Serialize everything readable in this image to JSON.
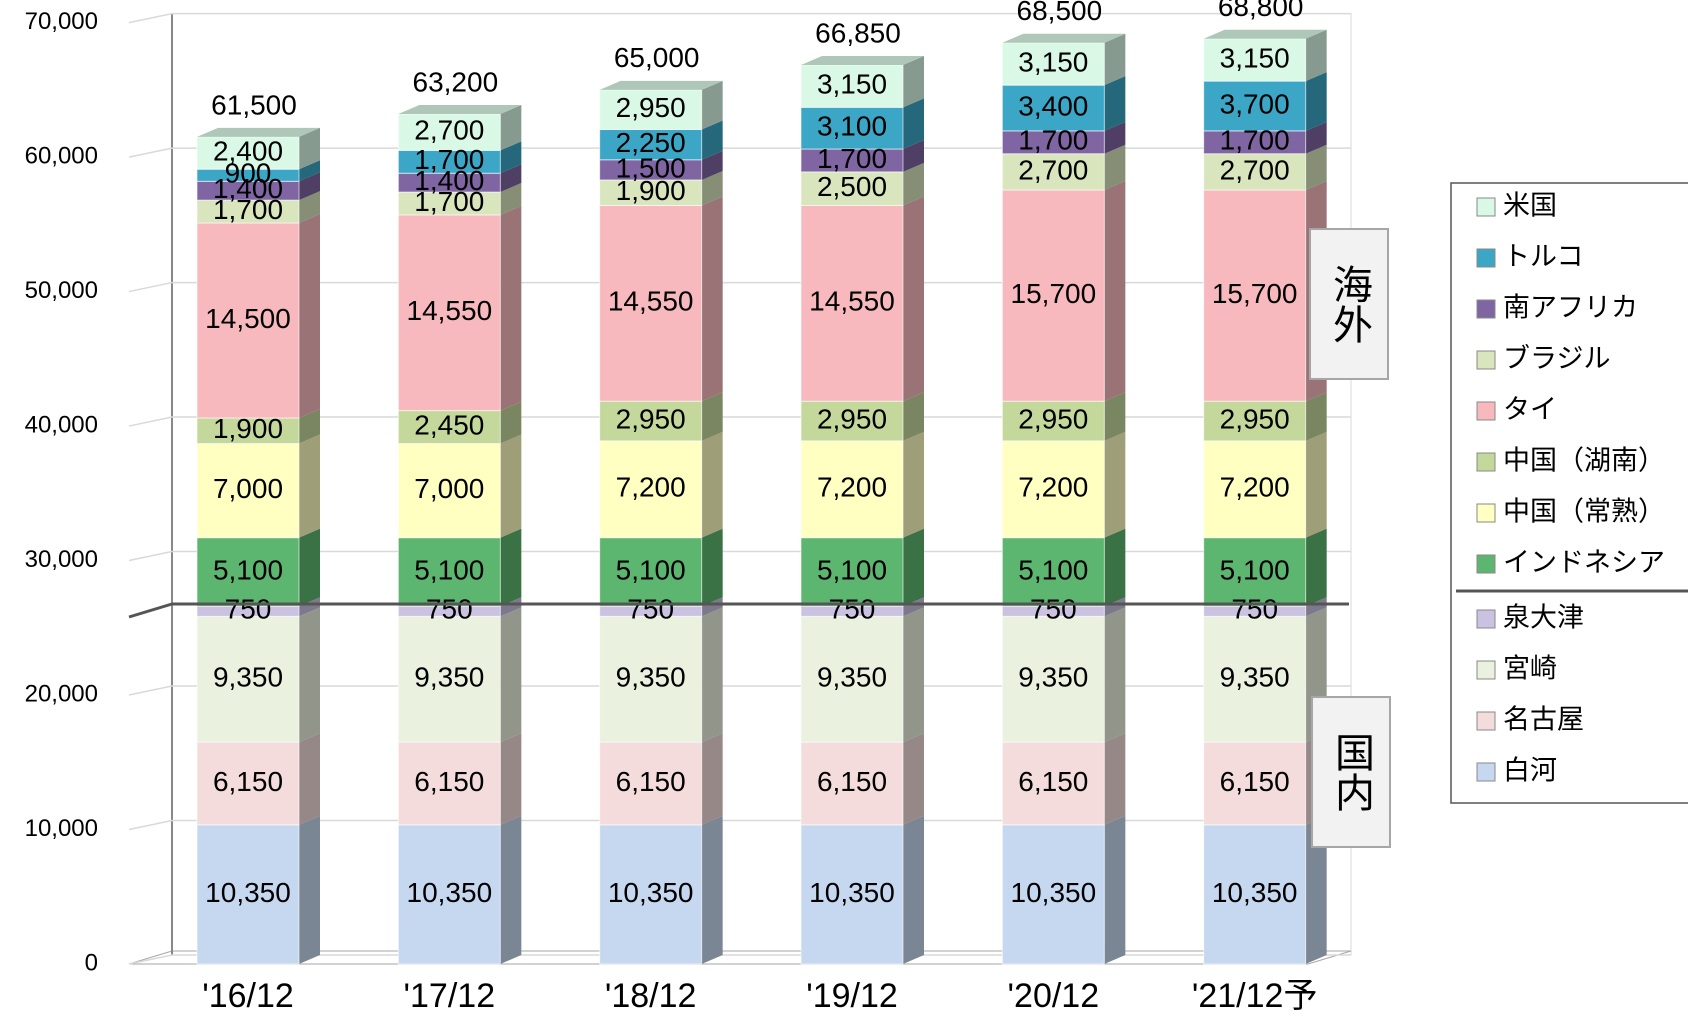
{
  "chart_data": {
    "type": "bar3d_stacked",
    "categories": [
      "'16/12",
      "'17/12",
      "'18/12",
      "'19/12",
      "'20/12",
      "'21/12予"
    ],
    "ylim": [
      0,
      70000
    ],
    "yticks": [
      0,
      {
        "value": 10000,
        "label": "10,000"
      },
      {
        "value": 20000,
        "label": "20,000"
      },
      {
        "value": 30000,
        "label": "30,000"
      },
      {
        "value": 40000,
        "label": "40,000"
      },
      {
        "value": 50000,
        "label": "50,000"
      },
      {
        "value": 60000,
        "label": "60,000"
      },
      {
        "value": 70000,
        "label": "70,000"
      }
    ],
    "grid": true,
    "legend": "right",
    "series": [
      {
        "name": "白河",
        "color": "#c6d8f0",
        "values": [
          10350,
          10350,
          10350,
          10350,
          10350,
          10350
        ],
        "value_labels": [
          "10,350",
          "10,350",
          "10,350",
          "10,350",
          "10,350",
          "10,350"
        ]
      },
      {
        "name": "名古屋",
        "color": "#f4dcdc",
        "values": [
          6150,
          6150,
          6150,
          6150,
          6150,
          6150
        ],
        "value_labels": [
          "6,150",
          "6,150",
          "6,150",
          "6,150",
          "6,150",
          "6,150"
        ]
      },
      {
        "name": "宮崎",
        "color": "#eaf1de",
        "values": [
          9350,
          9350,
          9350,
          9350,
          9350,
          9350
        ],
        "value_labels": [
          "9,350",
          "9,350",
          "9,350",
          "9,350",
          "9,350",
          "9,350"
        ]
      },
      {
        "name": "泉大津",
        "color": "#cbc2e2",
        "values": [
          750,
          750,
          750,
          750,
          750,
          750
        ],
        "value_labels": [
          "750",
          "750",
          "750",
          "750",
          "750",
          "750"
        ]
      },
      {
        "name": "インドネシア",
        "color": "#5db66f",
        "values": [
          5100,
          5100,
          5100,
          5100,
          5100,
          5100
        ],
        "value_labels": [
          "5,100",
          "5,100",
          "5,100",
          "5,100",
          "5,100",
          "5,100"
        ]
      },
      {
        "name": "中国（常熟）",
        "color": "#ffffc2",
        "values": [
          7000,
          7000,
          7200,
          7200,
          7200,
          7200
        ],
        "value_labels": [
          "7,000",
          "7,000",
          "7,200",
          "7,200",
          "7,200",
          "7,200"
        ]
      },
      {
        "name": "中国（湖南）",
        "color": "#c4d89c",
        "values": [
          1900,
          2450,
          2950,
          2950,
          2950,
          2950
        ],
        "value_labels": [
          "1,900",
          "2,450",
          "2,950",
          "2,950",
          "2,950",
          "2,950"
        ]
      },
      {
        "name": "タイ",
        "color": "#f7b9bd",
        "values": [
          14500,
          14550,
          14550,
          14550,
          15700,
          15700
        ],
        "value_labels": [
          "14,500",
          "14,550",
          "14,550",
          "14,550",
          "15,700",
          "15,700"
        ]
      },
      {
        "name": "ブラジル",
        "color": "#d8e5bd",
        "values": [
          1700,
          1700,
          1900,
          2500,
          2700,
          2700
        ],
        "value_labels": [
          "1,700",
          "1,700",
          "1,900",
          "2,500",
          "2,700",
          "2,700"
        ]
      },
      {
        "name": "南アフリカ",
        "color": "#8065a3",
        "values": [
          1400,
          1400,
          1500,
          1700,
          1700,
          1700
        ],
        "value_labels": [
          "1,400",
          "1,400",
          "1,500",
          "1,700",
          "1,700",
          "1,700"
        ]
      },
      {
        "name": "トルコ",
        "color": "#3ba6c6",
        "values": [
          900,
          1700,
          2250,
          3100,
          3400,
          3700
        ],
        "value_labels": [
          "900",
          "1,700",
          "2,250",
          "3,100",
          "3,400",
          "3,700"
        ]
      },
      {
        "name": "米国",
        "color": "#d9f9e6",
        "values": [
          2400,
          2700,
          2950,
          3150,
          3150,
          3150
        ],
        "value_labels": [
          "2,400",
          "2,700",
          "2,950",
          "3,150",
          "3,150",
          "3,150"
        ]
      }
    ],
    "totals": {
      "values": [
        61500,
        63200,
        65000,
        66850,
        68500,
        68800
      ],
      "value_labels": [
        "61,500",
        "63,200",
        "65,000",
        "66,850",
        "68,500",
        "68,800"
      ]
    },
    "annotations": [
      "海外",
      "国内"
    ]
  }
}
